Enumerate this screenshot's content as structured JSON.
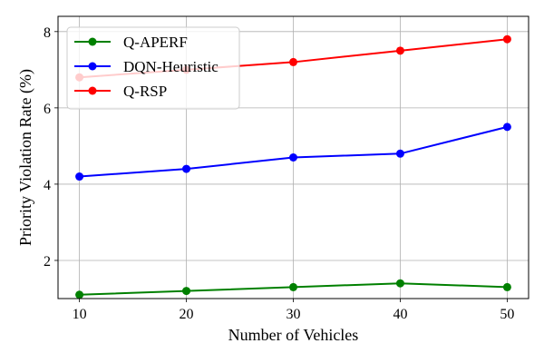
{
  "chart_data": {
    "type": "line",
    "xlabel": "Number of Vehicles",
    "ylabel": "Priority Violation Rate (%)",
    "x": [
      10,
      20,
      30,
      40,
      50
    ],
    "xticks": [
      "10",
      "20",
      "30",
      "40",
      "50"
    ],
    "yticks": [
      "2",
      "4",
      "6",
      "8"
    ],
    "xlim": [
      8,
      52
    ],
    "ylim": [
      1.0,
      8.4
    ],
    "grid": true,
    "legend_position": "top-left",
    "series": [
      {
        "name": "Q-APERF",
        "color": "#008000",
        "values": [
          1.1,
          1.2,
          1.3,
          1.4,
          1.3
        ]
      },
      {
        "name": "DQN-Heuristic",
        "color": "#0000ff",
        "values": [
          4.2,
          4.4,
          4.7,
          4.8,
          5.5
        ]
      },
      {
        "name": "Q-RSP",
        "color": "#ff0000",
        "values": [
          6.8,
          7.0,
          7.2,
          7.5,
          7.8
        ]
      }
    ]
  }
}
